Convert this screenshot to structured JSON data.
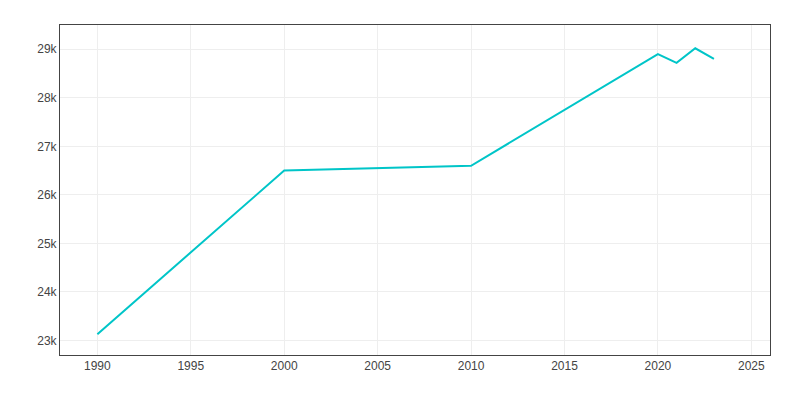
{
  "chart_data": {
    "type": "line",
    "x": [
      1990,
      2000,
      2010,
      2020,
      2021,
      2022,
      2023
    ],
    "values": [
      23130,
      26500,
      26600,
      28900,
      28720,
      29020,
      28800
    ],
    "color": "#00C5C8",
    "xlim": [
      1988,
      2026
    ],
    "ylim": [
      22700,
      29500
    ],
    "xticks": [
      1990,
      1995,
      2000,
      2005,
      2010,
      2015,
      2020,
      2025
    ],
    "yticks": [
      {
        "value": 23000,
        "label": "23k"
      },
      {
        "value": 24000,
        "label": "24k"
      },
      {
        "value": 25000,
        "label": "25k"
      },
      {
        "value": 26000,
        "label": "26k"
      },
      {
        "value": 27000,
        "label": "27k"
      },
      {
        "value": 28000,
        "label": "28k"
      },
      {
        "value": 29000,
        "label": "29k"
      }
    ],
    "grid": true
  }
}
